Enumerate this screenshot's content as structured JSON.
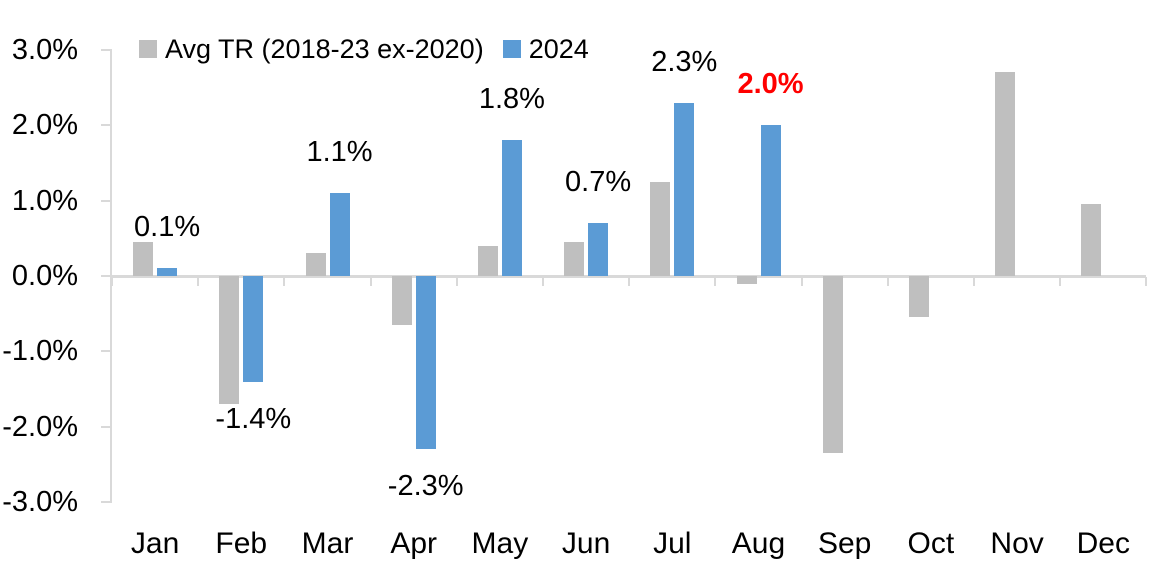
{
  "chart_data": {
    "type": "bar",
    "title": "",
    "categories": [
      "Jan",
      "Feb",
      "Mar",
      "Apr",
      "May",
      "Jun",
      "Jul",
      "Aug",
      "Sep",
      "Oct",
      "Nov",
      "Dec"
    ],
    "series": [
      {
        "name": "Avg TR (2018-23 ex-2020)",
        "color": "#BFBFBF",
        "values": [
          0.45,
          -1.7,
          0.3,
          -0.65,
          0.4,
          0.45,
          1.25,
          -0.1,
          -2.35,
          -0.55,
          2.7,
          0.95
        ]
      },
      {
        "name": "2024",
        "color": "#5B9BD5",
        "values": [
          0.1,
          -1.4,
          1.1,
          -2.3,
          1.8,
          0.7,
          2.3,
          2.0,
          null,
          null,
          null,
          null
        ]
      }
    ],
    "data_labels": {
      "labeled_series": "2024",
      "items": [
        {
          "category": "Jan",
          "text": "0.1%",
          "color": "#000000",
          "bold": false
        },
        {
          "category": "Feb",
          "text": "-1.4%",
          "color": "#000000",
          "bold": false
        },
        {
          "category": "Mar",
          "text": "1.1%",
          "color": "#000000",
          "bold": false
        },
        {
          "category": "Apr",
          "text": "-2.3%",
          "color": "#000000",
          "bold": false
        },
        {
          "category": "May",
          "text": "1.8%",
          "color": "#000000",
          "bold": false
        },
        {
          "category": "Jun",
          "text": "0.7%",
          "color": "#000000",
          "bold": false
        },
        {
          "category": "Jul",
          "text": "2.3%",
          "color": "#000000",
          "bold": false
        },
        {
          "category": "Aug",
          "text": "2.0%",
          "color": "#FF0000",
          "bold": true
        }
      ]
    },
    "y_axis": {
      "min": -3,
      "max": 3,
      "step": 1,
      "format": "percent",
      "tick_labels": [
        "3.0%",
        "2.0%",
        "1.0%",
        "0.0%",
        "-1.0%",
        "-2.0%",
        "-3.0%"
      ]
    },
    "x_axis": {
      "tick_labels": [
        "Jan",
        "Feb",
        "Mar",
        "Apr",
        "May",
        "Jun",
        "Jul",
        "Aug",
        "Sep",
        "Oct",
        "Nov",
        "Dec"
      ]
    },
    "legend": {
      "position": "top",
      "entries": [
        {
          "label": "Avg TR (2018-23 ex-2020)",
          "color": "#BFBFBF"
        },
        {
          "label": "2024",
          "color": "#5B9BD5"
        }
      ]
    },
    "grid": false,
    "axis_color": "#D9D9D9",
    "background": "#FFFFFF",
    "text_color": "#000000"
  }
}
